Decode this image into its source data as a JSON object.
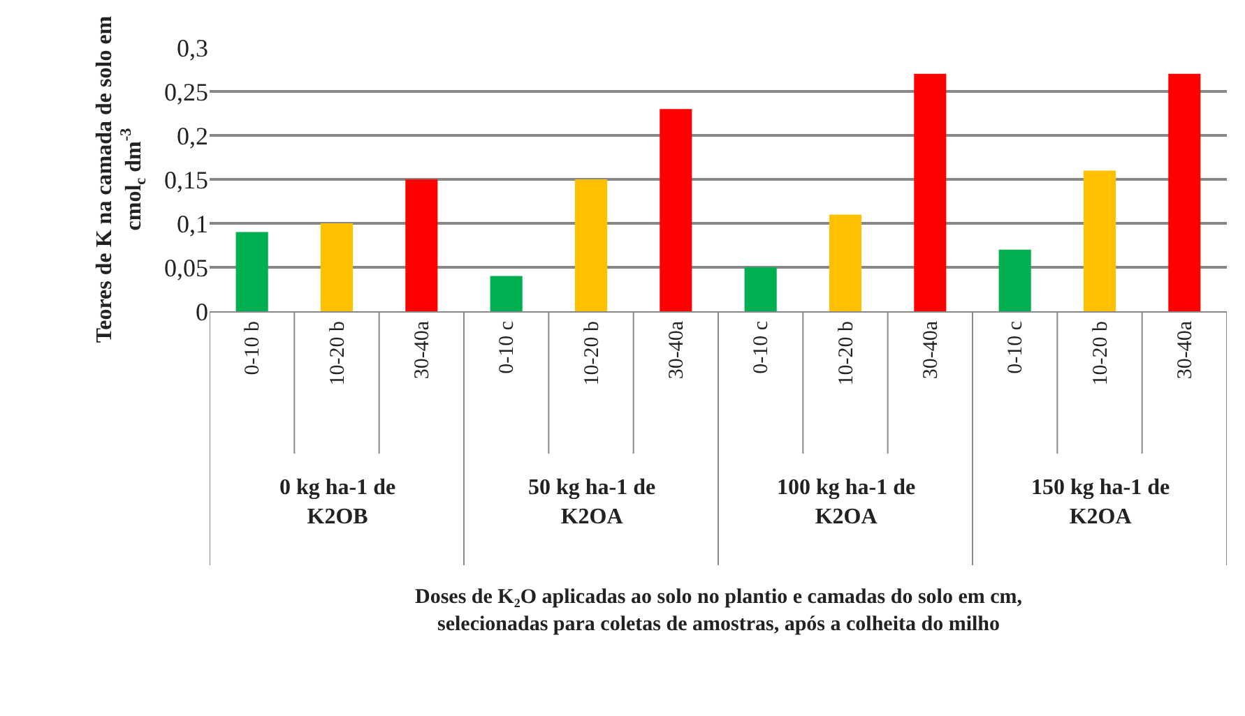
{
  "chart_data": {
    "type": "bar",
    "ylabel": "Teores de K na camada de solo em\ncmol$_{c}$ dm$^{-3}$",
    "categories": [
      "0-10 b",
      "10-20 b",
      "30-40a",
      "0-10 c",
      "10-20 b",
      "30-40a",
      "0-10 c",
      "10-20 b",
      "30-40a",
      "0-10 c",
      "10-20 b",
      "30-40a"
    ],
    "values": [
      0.09,
      0.1,
      0.15,
      0.04,
      0.15,
      0.23,
      0.05,
      0.11,
      0.27,
      0.07,
      0.16,
      0.27
    ],
    "colors": [
      "#00b050",
      "#ffc000",
      "#ff0000",
      "#00b050",
      "#ffc000",
      "#ff0000",
      "#00b050",
      "#ffc000",
      "#ff0000",
      "#00b050",
      "#ffc000",
      "#ff0000"
    ],
    "annotations": [
      "0 kg ha-1 de\nK2OB",
      "50 kg ha-1 de\nK2OA",
      "100 kg ha-1 de\nK2OA",
      "150 kg ha-1 de\nK2OA",
      "Doses de K₂O aplicadas ao solo no plantio e camadas do solo em cm,\nselecionadas para coletas de amostras, após a colheita do milho"
    ],
    "ylim": [
      0,
      0.3
    ],
    "yticks": [
      0,
      {
        "value": 0.05,
        "label": "0,05"
      },
      {
        "value": 0.1,
        "label": "0,1"
      },
      {
        "value": 0.15,
        "label": "0,15"
      },
      {
        "value": 0.2,
        "label": "0,2"
      },
      {
        "value": 0.25,
        "label": "0,25"
      },
      {
        "value": 0.3,
        "label": "0,3"
      }
    ],
    "grid": "y",
    "legend": false
  }
}
